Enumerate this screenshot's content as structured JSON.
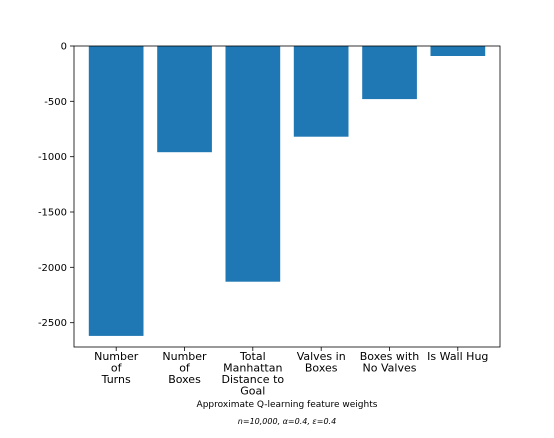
{
  "chart_data": {
    "type": "bar",
    "categories": [
      "Number of Turns",
      "Number of Boxes",
      "Total Manhattan Distance to Goal",
      "Valves in Boxes",
      "Boxes with No Valves",
      "Is Wall Hug"
    ],
    "category_lines": [
      [
        "Number",
        "of",
        "Turns"
      ],
      [
        "Number",
        "of",
        "Boxes"
      ],
      [
        "Total",
        "Manhattan",
        "Distance to",
        "Goal"
      ],
      [
        "Valves in",
        "Boxes"
      ],
      [
        "Boxes with",
        "No Valves"
      ],
      [
        "Is Wall Hug"
      ]
    ],
    "values": [
      -2620,
      -960,
      -2130,
      -820,
      -480,
      -90
    ],
    "yticks": [
      0,
      -500,
      -1000,
      -1500,
      -2000,
      -2500
    ],
    "ylim": [
      -2720,
      0
    ],
    "xlabel": "Approximate Q-learning feature weights",
    "annotation": "n=10,000, α=0.4, ε=0.4",
    "grid": false,
    "bar_color": "#1f77b4"
  }
}
